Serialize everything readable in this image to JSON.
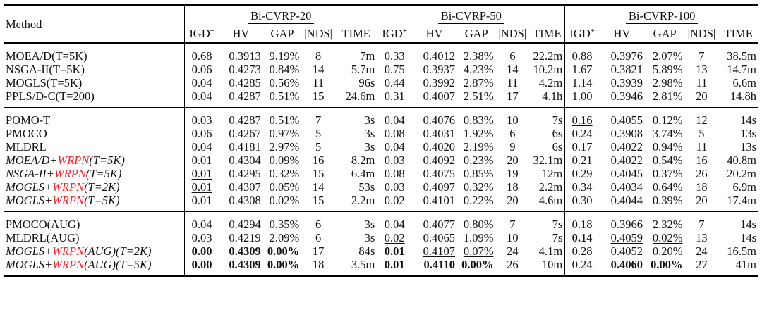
{
  "header": {
    "method_label": "Method",
    "groups": [
      "Bi-CVRP-20",
      "Bi-CVRP-50",
      "Bi-CVRP-100"
    ],
    "columns": [
      "IGD",
      "HV",
      "GAP",
      "|NDS|",
      "TIME"
    ],
    "igd_sup": "+"
  },
  "rows": [
    {
      "method": {
        "text": "MOEA/D(T=5K)"
      },
      "cells": [
        [
          "0.68",
          "0.3913",
          "9.19%",
          "8",
          "7m"
        ],
        [
          "0.33",
          "0.4012",
          "2.38%",
          "6",
          "22.2m"
        ],
        [
          "0.88",
          "0.3976",
          "2.07%",
          "7",
          "38.5m"
        ]
      ]
    },
    {
      "method": {
        "text": "NSGA-II(T=5K)"
      },
      "cells": [
        [
          "0.06",
          "0.4273",
          "0.84%",
          "14",
          "5.7m"
        ],
        [
          "0.75",
          "0.3937",
          "4.23%",
          "14",
          "10.2m"
        ],
        [
          "1.67",
          "0.3821",
          "5.89%",
          "13",
          "14.7m"
        ]
      ]
    },
    {
      "method": {
        "text": "MOGLS(T=5K)"
      },
      "cells": [
        [
          "0.04",
          "0.4285",
          "0.56%",
          "11",
          "96s"
        ],
        [
          "0.44",
          "0.3992",
          "2.87%",
          "11",
          "4.2m"
        ],
        [
          "1.14",
          "0.3939",
          "2.98%",
          "11",
          "6.6m"
        ]
      ]
    },
    {
      "method": {
        "text": "PPLS/D-C(T=200)"
      },
      "cells": [
        [
          "0.04",
          "0.4287",
          "0.51%",
          "15",
          "24.6m"
        ],
        [
          "0.31",
          "0.4007",
          "2.51%",
          "17",
          "4.1h"
        ],
        [
          "1.00",
          "0.3946",
          "2.81%",
          "20",
          "14.8h"
        ]
      ]
    },
    {
      "method": {
        "text": "POMO-T"
      },
      "cells": [
        [
          "0.03",
          "0.4287",
          "0.51%",
          "7",
          "3s"
        ],
        [
          "0.04",
          "0.4076",
          "0.83%",
          "10",
          "7s"
        ],
        [
          "0.16",
          "0.4055",
          "0.12%",
          "12",
          "14s"
        ]
      ],
      "underline": [
        [
          2,
          0
        ]
      ]
    },
    {
      "method": {
        "text": "PMOCO"
      },
      "cells": [
        [
          "0.06",
          "0.4267",
          "0.97%",
          "5",
          "3s"
        ],
        [
          "0.08",
          "0.4031",
          "1.92%",
          "6",
          "6s"
        ],
        [
          "0.24",
          "0.3908",
          "3.74%",
          "5",
          "13s"
        ]
      ]
    },
    {
      "method": {
        "text": "MLDRL"
      },
      "cells": [
        [
          "0.04",
          "0.4181",
          "2.97%",
          "5",
          "3s"
        ],
        [
          "0.04",
          "0.4020",
          "2.19%",
          "9",
          "6s"
        ],
        [
          "0.17",
          "0.4022",
          "0.94%",
          "11",
          "13s"
        ]
      ]
    },
    {
      "method": {
        "pre": "MOEA/D+",
        "red": "WRPN",
        "post": "(T=5K)"
      },
      "cells": [
        [
          "0.01",
          "0.4304",
          "0.09%",
          "16",
          "8.2m"
        ],
        [
          "0.03",
          "0.4092",
          "0.23%",
          "20",
          "32.1m"
        ],
        [
          "0.21",
          "0.4022",
          "0.54%",
          "16",
          "40.8m"
        ]
      ],
      "underline": [
        [
          0,
          0
        ]
      ]
    },
    {
      "method": {
        "pre": "NSGA-II+",
        "red": "WRPN",
        "post": "(T=5K)"
      },
      "cells": [
        [
          "0.01",
          "0.4295",
          "0.32%",
          "15",
          "6.4m"
        ],
        [
          "0.08",
          "0.4075",
          "0.85%",
          "19",
          "12m"
        ],
        [
          "0.29",
          "0.4045",
          "0.37%",
          "26",
          "20.2m"
        ]
      ],
      "underline": [
        [
          0,
          0
        ]
      ]
    },
    {
      "method": {
        "pre": "MOGLS+",
        "red": "WRPN",
        "post": "(T=2K)"
      },
      "cells": [
        [
          "0.01",
          "0.4307",
          "0.05%",
          "14",
          "53s"
        ],
        [
          "0.03",
          "0.4097",
          "0.32%",
          "18",
          "2.2m"
        ],
        [
          "0.34",
          "0.4034",
          "0.64%",
          "18",
          "6.9m"
        ]
      ],
      "underline": [
        [
          0,
          0
        ]
      ]
    },
    {
      "method": {
        "pre": "MOGLS+",
        "red": "WRPN",
        "post": "(T=5K)"
      },
      "cells": [
        [
          "0.01",
          "0.4308",
          "0.02%",
          "15",
          "2.2m"
        ],
        [
          "0.02",
          "0.4101",
          "0.22%",
          "20",
          "4.6m"
        ],
        [
          "0.30",
          "0.4044",
          "0.39%",
          "20",
          "17.4m"
        ]
      ],
      "underline": [
        [
          0,
          0
        ],
        [
          0,
          1
        ],
        [
          0,
          2
        ],
        [
          1,
          0
        ]
      ]
    },
    {
      "method": {
        "text": "PMOCO(AUG)"
      },
      "cells": [
        [
          "0.04",
          "0.4294",
          "0.35%",
          "6",
          "3s"
        ],
        [
          "0.04",
          "0.4077",
          "0.80%",
          "7",
          "7s"
        ],
        [
          "0.18",
          "0.3966",
          "2.32%",
          "7",
          "14s"
        ]
      ]
    },
    {
      "method": {
        "text": "MLDRL(AUG)"
      },
      "cells": [
        [
          "0.03",
          "0.4219",
          "2.09%",
          "6",
          "3s"
        ],
        [
          "0.02",
          "0.4065",
          "1.09%",
          "10",
          "7s"
        ],
        [
          "0.14",
          "0.4059",
          "0.02%",
          "13",
          "14s"
        ]
      ],
      "underline": [
        [
          1,
          0
        ],
        [
          2,
          1
        ],
        [
          2,
          2
        ]
      ],
      "bold": [
        [
          2,
          0
        ]
      ]
    },
    {
      "method": {
        "pre": "MOGLS+",
        "red": "WRPN",
        "post": "(AUG)(T=2K)"
      },
      "cells": [
        [
          "0.00",
          "0.4309",
          "0.00%",
          "17",
          "84s"
        ],
        [
          "0.01",
          "0.4107",
          "0.07%",
          "24",
          "4.1m"
        ],
        [
          "0.28",
          "0.4052",
          "0.20%",
          "24",
          "16.5m"
        ]
      ],
      "underline": [
        [
          1,
          1
        ],
        [
          1,
          2
        ]
      ],
      "bold": [
        [
          0,
          0
        ],
        [
          0,
          1
        ],
        [
          0,
          2
        ],
        [
          1,
          0
        ]
      ]
    },
    {
      "method": {
        "pre": "MOGLS+",
        "red": "WRPN",
        "post": "(AUG)(T=5K)"
      },
      "cells": [
        [
          "0.00",
          "0.4309",
          "0.00%",
          "18",
          "3.5m"
        ],
        [
          "0.01",
          "0.4110",
          "0.00%",
          "26",
          "10m"
        ],
        [
          "0.24",
          "0.4060",
          "0.00%",
          "27",
          "41m"
        ]
      ],
      "bold": [
        [
          0,
          0
        ],
        [
          0,
          1
        ],
        [
          0,
          2
        ],
        [
          1,
          0
        ],
        [
          1,
          1
        ],
        [
          1,
          2
        ],
        [
          2,
          1
        ],
        [
          2,
          2
        ]
      ]
    }
  ]
}
